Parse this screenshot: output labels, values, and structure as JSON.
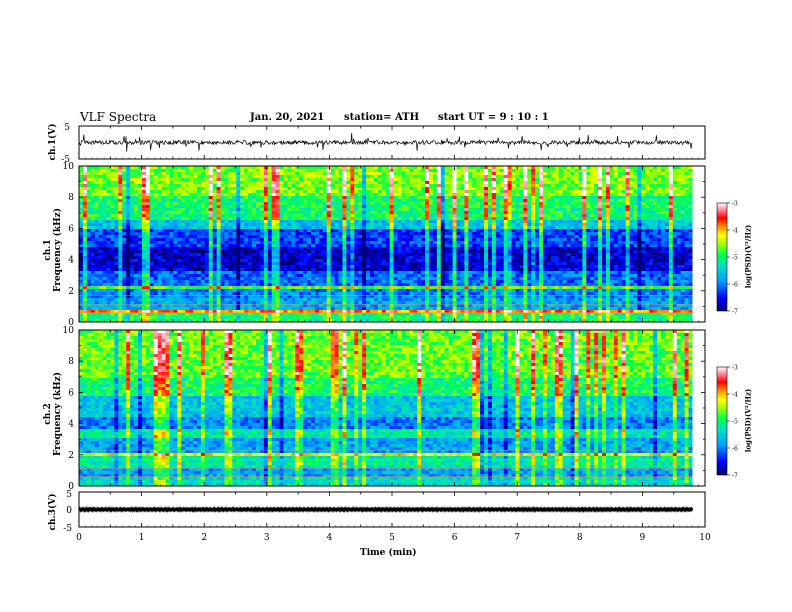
{
  "header": {
    "title": "VLF Spectra",
    "date": "Jan. 20, 2021",
    "station": "station= ATH",
    "start": "start  UT =   9 : 10 : 1"
  },
  "chart_data": [
    {
      "type": "line",
      "panel": "ch1-waveform",
      "ylabel": "ch.1(V)",
      "ylim": [
        -5,
        5
      ],
      "yticks": [
        "5",
        "-5"
      ],
      "xlim": [
        0,
        10
      ],
      "baseline": 0,
      "amplitude_typical": 1.0,
      "color": "#000000"
    },
    {
      "type": "heatmap",
      "panel": "ch1-spectrogram",
      "ylabel": "ch.1\nFrequency (kHz)",
      "ylabel_line1": "ch.1",
      "ylabel_line2": "Frequency (kHz)",
      "ylim": [
        0,
        10
      ],
      "yticks": [
        "0",
        "2",
        "4",
        "6",
        "8",
        "10"
      ],
      "xlim": [
        0,
        10
      ],
      "colorbar": {
        "label": "log(PSD)(V²/Hz)",
        "ticks": [
          "-3",
          "-4",
          "-5",
          "-6",
          "-7"
        ],
        "range": [
          -7,
          -3
        ]
      }
    },
    {
      "type": "heatmap",
      "panel": "ch2-spectrogram",
      "ylabel": "ch.2\nFrequency (kHz)",
      "ylabel_line1": "ch.2",
      "ylabel_line2": "Frequency (kHz)",
      "ylim": [
        0,
        10
      ],
      "yticks": [
        "0",
        "2",
        "4",
        "6",
        "8",
        "10"
      ],
      "xlim": [
        0,
        10
      ],
      "colorbar": {
        "label": "log(PSD)(V²/Hz)",
        "ticks": [
          "-3",
          "-4",
          "-5",
          "-6",
          "-7"
        ],
        "range": [
          -7,
          -3
        ]
      }
    },
    {
      "type": "line",
      "panel": "ch3-waveform",
      "ylabel": "ch.3(V)",
      "ylim": [
        -5,
        5
      ],
      "yticks": [
        "5",
        "0",
        "-5"
      ],
      "xlim": [
        0,
        10
      ],
      "baseline": 0,
      "amplitude_typical": 0.3,
      "color": "#000000"
    }
  ],
  "xaxis": {
    "label": "Time (min)",
    "ticks": [
      "0",
      "1",
      "2",
      "3",
      "4",
      "5",
      "6",
      "7",
      "8",
      "9",
      "10"
    ],
    "data_end": 9.8
  },
  "colors": {
    "map": [
      "#00008b",
      "#0000ff",
      "#00bfff",
      "#00ff7f",
      "#7fff00",
      "#ffff00",
      "#ff8c00",
      "#ff0000",
      "#ffc0cb",
      "#ffffff"
    ]
  }
}
